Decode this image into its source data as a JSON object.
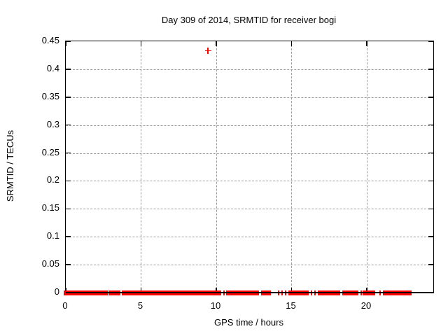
{
  "title": "Day 309 of 2014, SRMTID for receiver bogi",
  "x_axis": {
    "label": "GPS time / hours",
    "tick_values": [
      0,
      5,
      10,
      15,
      20
    ],
    "tick_labels": [
      "0",
      "5",
      "10",
      "15",
      "20"
    ],
    "min": 0,
    "max": 24.42
  },
  "y_axis": {
    "label": "SRMTID / TECUs",
    "tick_values": [
      0,
      0.05,
      0.1,
      0.15,
      0.2,
      0.25,
      0.3,
      0.35,
      0.4,
      0.45
    ],
    "tick_labels": [
      "0",
      "0.05",
      "0.1",
      "0.15",
      "0.2",
      "0.25",
      "0.3",
      "0.35",
      "0.4",
      "0.45"
    ],
    "min": 0,
    "max": 0.45
  },
  "colors": {
    "marker": "#ff0000",
    "grid": "#9c9c9c",
    "frame": "#000000",
    "background": "#ffffff",
    "text": "#000000"
  },
  "chart_data": {
    "type": "scatter",
    "title": "Day 309 of 2014, SRMTID for receiver bogi",
    "xlabel": "GPS time / hours",
    "ylabel": "SRMTID / TECUs",
    "xlim": [
      0,
      24.42
    ],
    "ylim": [
      0,
      0.45
    ],
    "x_ticks": [
      0,
      5,
      10,
      15,
      20
    ],
    "y_ticks": [
      0,
      0.05,
      0.1,
      0.15,
      0.2,
      0.25,
      0.3,
      0.35,
      0.4,
      0.45
    ],
    "grid": true,
    "legend": "none",
    "marker": "plus",
    "marker_color": "#ff0000",
    "outlier_point": {
      "x": 9.45,
      "y": 0.433
    },
    "baseline_value": 0,
    "baseline_segments_solid": [
      [
        0.0,
        0.37
      ],
      [
        0.56,
        1.86
      ],
      [
        2.05,
        2.65
      ],
      [
        2.98,
        3.49
      ],
      [
        3.86,
        6.6
      ],
      [
        6.88,
        8.84
      ],
      [
        9.02,
        10.14
      ],
      [
        10.79,
        11.16
      ],
      [
        11.3,
        11.81
      ],
      [
        11.91,
        12.33
      ],
      [
        12.42,
        12.7
      ],
      [
        13.21,
        13.49
      ],
      [
        14.98,
        16.0
      ],
      [
        16.93,
        18.05
      ],
      [
        18.56,
        19.3
      ],
      [
        19.86,
        20.42
      ],
      [
        21.3,
        22.84
      ]
    ],
    "baseline_segments_sparse": [
      [
        10.35,
        10.65
      ],
      [
        12.9,
        13.15
      ],
      [
        14.25,
        14.9
      ],
      [
        16.19,
        16.93
      ],
      [
        18.3,
        18.56
      ],
      [
        19.49,
        19.7
      ],
      [
        21.0,
        21.3
      ]
    ]
  }
}
